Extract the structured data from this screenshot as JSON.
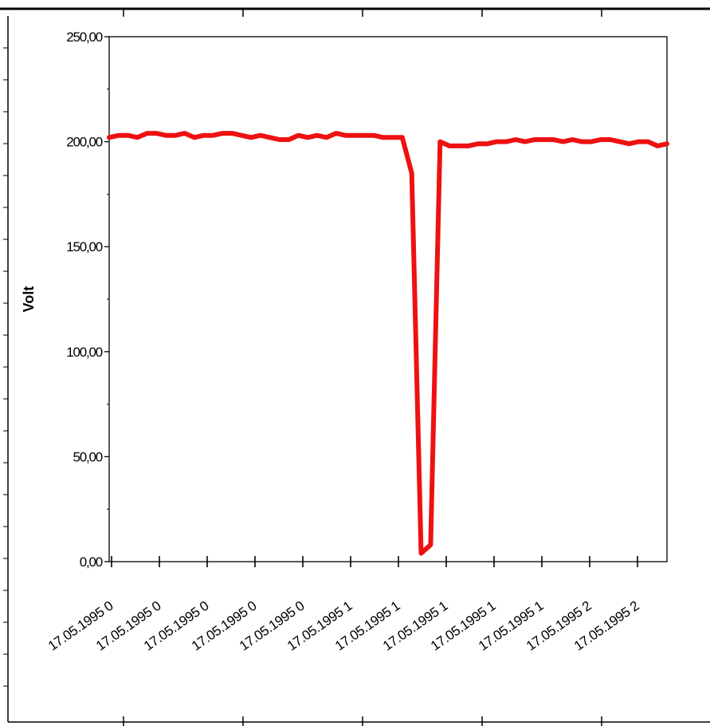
{
  "chart_data": {
    "type": "line",
    "title": "",
    "xlabel": "",
    "ylabel": "Volt",
    "ylim": [
      0,
      250
    ],
    "yticks": [
      0,
      50,
      100,
      150,
      200,
      250
    ],
    "ytick_labels": [
      "0,00",
      "50,00",
      "100,00",
      "150,00",
      "200,00",
      "250,00"
    ],
    "xtick_labels": [
      "17.05.1995 0",
      "17.05.1995 0",
      "17.05.1995 0",
      "17.05.1995 0",
      "17.05.1995 0",
      "17.05.1995 1",
      "17.05.1995 1",
      "17.05.1995 1",
      "17.05.1995 1",
      "17.05.1995 1",
      "17.05.1995 2",
      "17.05.1995 2"
    ],
    "grid": false,
    "legend": "none",
    "series_color": "#ee1111",
    "series": [
      {
        "values": [
          202,
          203,
          203,
          202,
          204,
          204,
          203,
          203,
          204,
          202,
          203,
          203,
          204,
          204,
          203,
          202,
          203,
          202,
          201,
          201,
          203,
          202,
          203,
          202,
          204,
          203,
          203,
          203,
          203,
          202,
          202,
          202,
          185,
          4,
          8,
          200,
          198,
          198,
          198,
          199,
          199,
          200,
          200,
          201,
          200,
          201,
          201,
          201,
          200,
          201,
          200,
          200,
          201,
          201,
          200,
          199,
          200,
          200,
          198,
          199
        ]
      }
    ]
  }
}
